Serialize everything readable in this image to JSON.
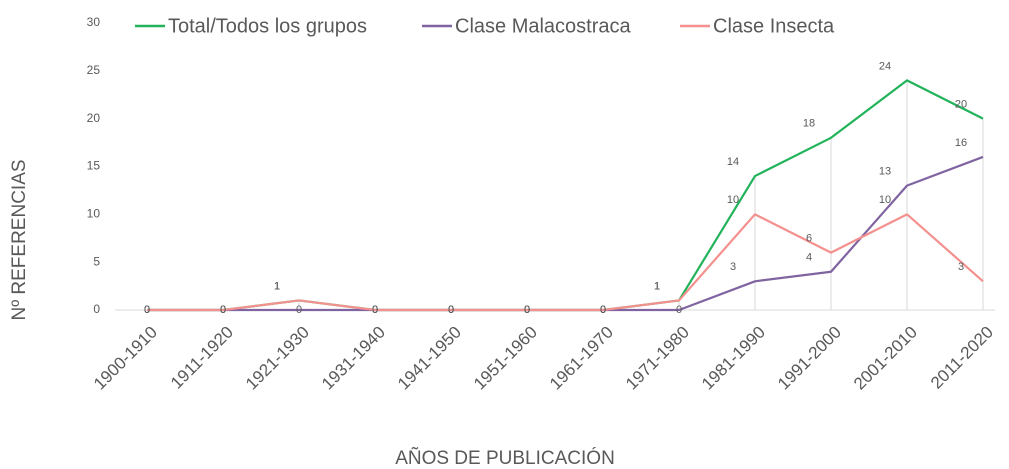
{
  "chart_data": {
    "type": "line",
    "x_label": "AÑOS DE PUBLICACIÓN",
    "y_label": "Nº REFERENCIAS",
    "categories": [
      "1900-1910",
      "1911-1920",
      "1921-1930",
      "1931-1940",
      "1941-1950",
      "1951-1960",
      "1961-1970",
      "1971-1980",
      "1981-1990",
      "1991-2000",
      "2001-2010",
      "2011-2020"
    ],
    "series": [
      {
        "name": "Total/Todos los grupos",
        "color": "#22b35a",
        "values": [
          0,
          0,
          1,
          0,
          0,
          0,
          0,
          1,
          14,
          18,
          24,
          20
        ]
      },
      {
        "name": "Clase Malacostraca",
        "color": "#8064a2",
        "values": [
          0,
          0,
          0,
          0,
          0,
          0,
          0,
          0,
          3,
          4,
          13,
          16
        ]
      },
      {
        "name": "Clase Insecta",
        "color": "#f4908e",
        "values": [
          0,
          0,
          1,
          0,
          0,
          0,
          0,
          1,
          10,
          6,
          10,
          3
        ]
      }
    ],
    "ylim": [
      0,
      30
    ],
    "yticks": [
      0,
      5,
      10,
      15,
      20,
      25,
      30
    ],
    "legend": "top",
    "grid": false
  }
}
